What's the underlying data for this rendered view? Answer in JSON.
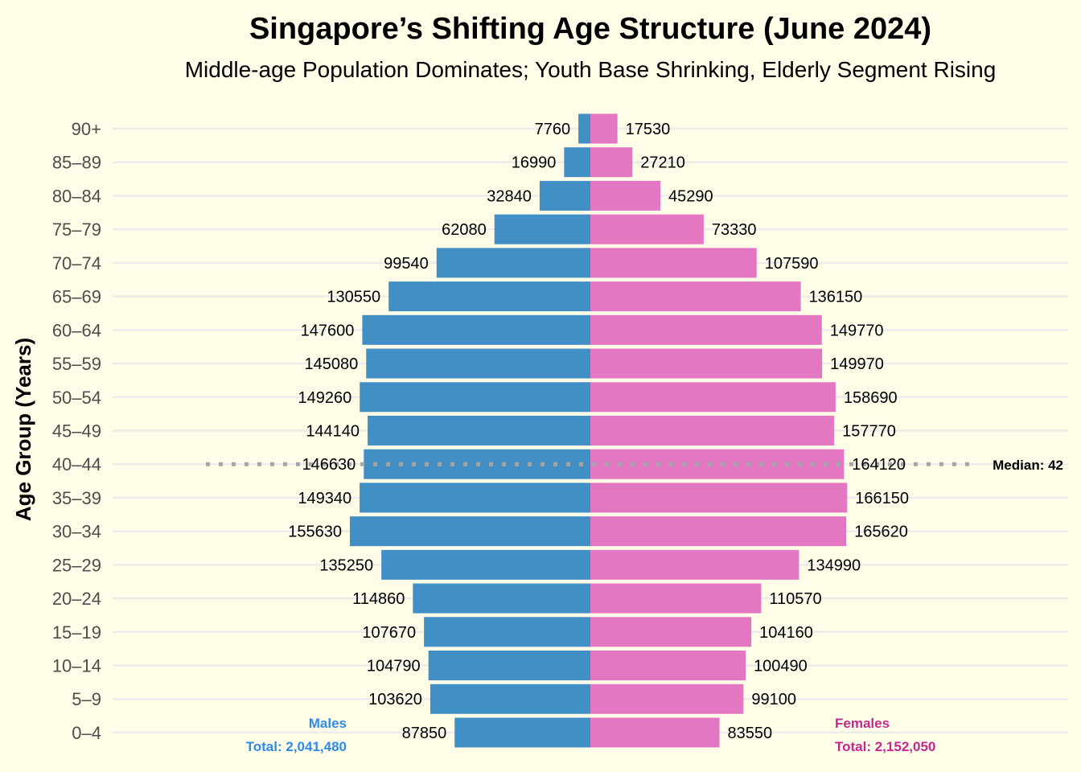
{
  "chart_data": {
    "type": "bar",
    "orientation": "horizontal",
    "subtype": "population-pyramid",
    "title": "Singapore’s Shifting Age Structure (June 2024)",
    "subtitle": "Middle-age Population Dominates; Youth Base Shrinking, Elderly Segment Rising",
    "ylabel": "Age Group (Years)",
    "xlabel": "",
    "categories": [
      "0–4",
      "5–9",
      "10–14",
      "15–19",
      "20–24",
      "25–29",
      "30–34",
      "35–39",
      "40–44",
      "45–49",
      "50–54",
      "55–59",
      "60–64",
      "65–69",
      "70–74",
      "75–79",
      "80–84",
      "85–89",
      "90+"
    ],
    "series": [
      {
        "name": "Males",
        "color": "#428FC6",
        "label_color": "#2E8BE6",
        "total_label": "Total: 2,041,480",
        "values": [
          87850,
          103620,
          104790,
          107670,
          114860,
          135250,
          155630,
          149340,
          146630,
          144140,
          149260,
          145080,
          147600,
          130550,
          99540,
          62080,
          32840,
          16990,
          7760
        ]
      },
      {
        "name": "Females",
        "color": "#E377C2",
        "label_color": "#C2298F",
        "total_label": "Total: 2,152,050",
        "values": [
          83550,
          99100,
          100490,
          104160,
          110570,
          134990,
          165620,
          166150,
          164120,
          157770,
          158690,
          149970,
          149770,
          136150,
          107590,
          73330,
          45290,
          27210,
          17530
        ]
      }
    ],
    "annotations": [
      {
        "type": "median-line",
        "category": "40–44",
        "label": "Median: 42",
        "color": "#A6A6A6"
      }
    ],
    "xlim": [
      -170000,
      170000
    ],
    "grid": true,
    "legend": "bottom"
  }
}
